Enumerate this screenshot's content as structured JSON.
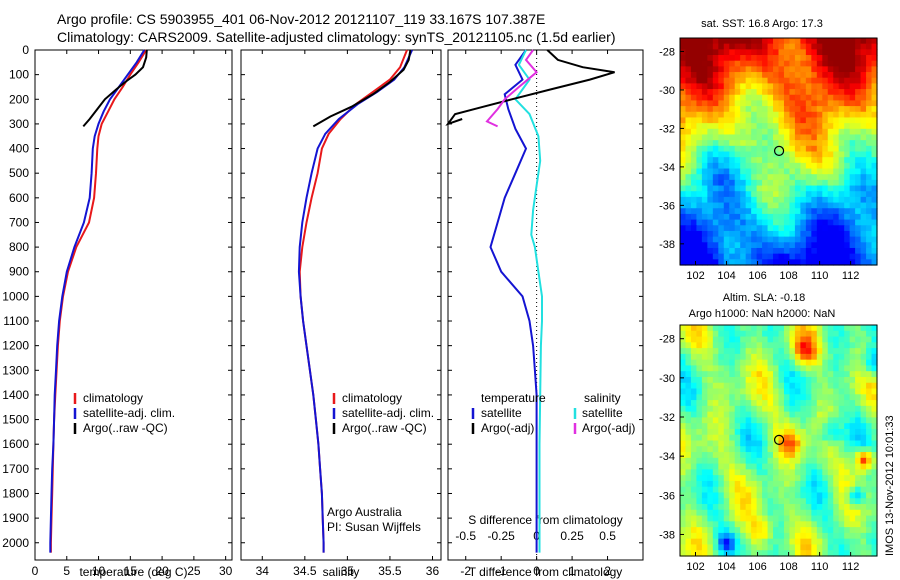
{
  "header": {
    "line1": "Argo profile: CS 5903955_401 06-Nov-2012 20121107_119 33.167S 107.387E",
    "line2": "Climatology: CARS2009. Satellite-adjusted climatology: synTS_20121105.nc (1.5d earlier)"
  },
  "credit": {
    "org": "Argo Australia",
    "pi": "PI: Susan Wijffels",
    "stamp": "IMOS 13-Nov-2012 10:01:33"
  },
  "colors": {
    "climatology": "#e8181a",
    "satellite": "#1414d2",
    "argo": "#000000",
    "salinity_satellite": "#22e0e0",
    "salinity_argo": "#e030e0"
  },
  "chart_data": [
    {
      "type": "line",
      "id": "temperature",
      "xlabel": "temperature (deg C)",
      "xlim": [
        0,
        31
      ],
      "xticks": [
        0,
        5,
        10,
        15,
        20,
        25,
        30
      ],
      "ylim": [
        0,
        2070
      ],
      "yreversed": true,
      "yticks": [
        0,
        100,
        200,
        300,
        400,
        500,
        600,
        700,
        800,
        900,
        1000,
        1100,
        1200,
        1300,
        1400,
        1500,
        1600,
        1700,
        1800,
        1900,
        2000
      ],
      "legend": [
        "climatology",
        "satellite-adj. clim.",
        "Argo(..raw -QC)"
      ],
      "series": [
        {
          "name": "climatology",
          "color": "#e8181a",
          "points": [
            [
              17.5,
              0
            ],
            [
              16.3,
              50
            ],
            [
              15.0,
              100
            ],
            [
              13.8,
              150
            ],
            [
              12.5,
              200
            ],
            [
              11.5,
              250
            ],
            [
              10.5,
              300
            ],
            [
              10.0,
              350
            ],
            [
              9.8,
              400
            ],
            [
              9.6,
              500
            ],
            [
              9.3,
              600
            ],
            [
              8.5,
              700
            ],
            [
              6.5,
              800
            ],
            [
              5.2,
              900
            ],
            [
              4.4,
              1000
            ],
            [
              3.9,
              1100
            ],
            [
              3.6,
              1200
            ],
            [
              3.4,
              1300
            ],
            [
              3.2,
              1400
            ],
            [
              3.0,
              1500
            ],
            [
              2.9,
              1600
            ],
            [
              2.8,
              1700
            ],
            [
              2.7,
              1800
            ],
            [
              2.6,
              1900
            ],
            [
              2.5,
              2000
            ],
            [
              2.5,
              2040
            ]
          ]
        },
        {
          "name": "satellite-adj. clim.",
          "color": "#1414d2",
          "points": [
            [
              17.2,
              0
            ],
            [
              16.0,
              50
            ],
            [
              14.6,
              100
            ],
            [
              13.2,
              150
            ],
            [
              11.8,
              200
            ],
            [
              10.8,
              250
            ],
            [
              10.0,
              300
            ],
            [
              9.4,
              350
            ],
            [
              9.1,
              400
            ],
            [
              8.9,
              500
            ],
            [
              8.6,
              600
            ],
            [
              7.7,
              700
            ],
            [
              6.2,
              800
            ],
            [
              5.0,
              900
            ],
            [
              4.3,
              1000
            ],
            [
              3.8,
              1100
            ],
            [
              3.5,
              1200
            ],
            [
              3.3,
              1300
            ],
            [
              3.1,
              1400
            ],
            [
              3.0,
              1500
            ],
            [
              2.9,
              1600
            ],
            [
              2.7,
              1700
            ],
            [
              2.6,
              1800
            ],
            [
              2.5,
              1900
            ],
            [
              2.4,
              2000
            ],
            [
              2.4,
              2040
            ]
          ]
        },
        {
          "name": "Argo(..raw -QC)",
          "color": "#000000",
          "points": [
            [
              17.6,
              0
            ],
            [
              17.5,
              30
            ],
            [
              17.0,
              70
            ],
            [
              15.8,
              100
            ],
            [
              14.2,
              130
            ],
            [
              12.8,
              160
            ],
            [
              11.0,
              200
            ],
            [
              9.8,
              240
            ],
            [
              8.6,
              280
            ],
            [
              7.6,
              310
            ]
          ]
        }
      ]
    },
    {
      "type": "line",
      "id": "salinity",
      "xlabel": "salinity",
      "xlim": [
        33.75,
        36.1
      ],
      "xticks": [
        34,
        34.5,
        35,
        35.5,
        36
      ],
      "ylim": [
        0,
        2070
      ],
      "yreversed": true,
      "legend": [
        "climatology",
        "satellite-adj. clim.",
        "Argo(..raw -QC)"
      ],
      "series": [
        {
          "name": "climatology",
          "color": "#e8181a",
          "points": [
            [
              35.7,
              0
            ],
            [
              35.62,
              70
            ],
            [
              35.5,
              120
            ],
            [
              35.3,
              170
            ],
            [
              35.1,
              220
            ],
            [
              34.92,
              280
            ],
            [
              34.78,
              340
            ],
            [
              34.7,
              400
            ],
            [
              34.65,
              500
            ],
            [
              34.58,
              600
            ],
            [
              34.52,
              700
            ],
            [
              34.47,
              800
            ],
            [
              34.44,
              900
            ],
            [
              34.45,
              1000
            ],
            [
              34.48,
              1100
            ],
            [
              34.52,
              1200
            ],
            [
              34.56,
              1300
            ],
            [
              34.6,
              1400
            ],
            [
              34.63,
              1500
            ],
            [
              34.66,
              1600
            ],
            [
              34.68,
              1700
            ],
            [
              34.7,
              1800
            ],
            [
              34.71,
              1900
            ],
            [
              34.72,
              2000
            ],
            [
              34.72,
              2040
            ]
          ]
        },
        {
          "name": "satellite-adj. clim.",
          "color": "#1414d2",
          "points": [
            [
              35.76,
              0
            ],
            [
              35.67,
              70
            ],
            [
              35.55,
              120
            ],
            [
              35.35,
              170
            ],
            [
              35.12,
              220
            ],
            [
              34.9,
              280
            ],
            [
              34.74,
              340
            ],
            [
              34.65,
              400
            ],
            [
              34.58,
              500
            ],
            [
              34.52,
              600
            ],
            [
              34.47,
              700
            ],
            [
              34.44,
              800
            ],
            [
              34.43,
              900
            ],
            [
              34.45,
              1000
            ],
            [
              34.48,
              1100
            ],
            [
              34.52,
              1200
            ],
            [
              34.56,
              1300
            ],
            [
              34.6,
              1400
            ],
            [
              34.63,
              1500
            ],
            [
              34.66,
              1600
            ],
            [
              34.68,
              1700
            ],
            [
              34.7,
              1800
            ],
            [
              34.71,
              1900
            ],
            [
              34.72,
              2000
            ],
            [
              34.72,
              2040
            ]
          ]
        },
        {
          "name": "Argo(..raw -QC)",
          "color": "#000000",
          "points": [
            [
              35.74,
              0
            ],
            [
              35.72,
              40
            ],
            [
              35.66,
              80
            ],
            [
              35.5,
              130
            ],
            [
              35.3,
              180
            ],
            [
              35.05,
              230
            ],
            [
              34.8,
              270
            ],
            [
              34.6,
              310
            ]
          ]
        }
      ]
    },
    {
      "type": "line",
      "id": "difference",
      "xlabel": "T difference from climatology",
      "xlabel_top": "S difference from climatology",
      "xlim": [
        -2.5,
        3
      ],
      "xticks": [
        -2,
        -1,
        0,
        1,
        2
      ],
      "sticks_positions": [
        -2,
        -1,
        0,
        1,
        2
      ],
      "sticks_labels": [
        "-0.5",
        "-0.25",
        "0",
        "0.25",
        "0.5"
      ],
      "ylim": [
        0,
        2070
      ],
      "yreversed": true,
      "legend_temperature_title": "temperature",
      "legend_salinity_title": "salinity",
      "legend_temperature": [
        "satellite",
        "Argo(-adj)"
      ],
      "legend_salinity": [
        "satellite",
        "Argo(-adj)"
      ],
      "series": [
        {
          "name": "temperature satellite",
          "color": "#1414d2",
          "points": [
            [
              -0.3,
              0
            ],
            [
              -0.6,
              60
            ],
            [
              -0.4,
              120
            ],
            [
              -0.9,
              180
            ],
            [
              -0.8,
              240
            ],
            [
              -0.6,
              320
            ],
            [
              -0.3,
              400
            ],
            [
              -0.6,
              500
            ],
            [
              -0.9,
              600
            ],
            [
              -1.1,
              700
            ],
            [
              -1.3,
              800
            ],
            [
              -1.0,
              900
            ],
            [
              -0.4,
              1000
            ],
            [
              -0.2,
              1100
            ],
            [
              -0.1,
              1200
            ],
            [
              -0.05,
              1300
            ],
            [
              0.0,
              1400
            ],
            [
              0.0,
              1500
            ],
            [
              0.0,
              1600
            ],
            [
              0.0,
              1700
            ],
            [
              0.0,
              1800
            ],
            [
              0.0,
              1900
            ],
            [
              0.0,
              2000
            ],
            [
              0.0,
              2040
            ]
          ]
        },
        {
          "name": "salinity satellite",
          "color": "#22e0e0",
          "points": [
            [
              -0.3,
              0
            ],
            [
              -0.5,
              60
            ],
            [
              -0.2,
              120
            ],
            [
              -0.6,
              200
            ],
            [
              -0.2,
              260
            ],
            [
              0.05,
              350
            ],
            [
              0.1,
              450
            ],
            [
              0.0,
              550
            ],
            [
              -0.1,
              650
            ],
            [
              -0.15,
              750
            ],
            [
              -0.05,
              800
            ],
            [
              0.05,
              900
            ],
            [
              0.15,
              1000
            ],
            [
              0.15,
              1100
            ],
            [
              0.12,
              1200
            ],
            [
              0.1,
              1400
            ],
            [
              0.08,
              1600
            ],
            [
              0.08,
              1800
            ],
            [
              0.08,
              2000
            ],
            [
              0.08,
              2040
            ]
          ]
        },
        {
          "name": "temperature Argo(-adj)",
          "color": "#000000",
          "points": [
            [
              0.3,
              0
            ],
            [
              0.6,
              40
            ],
            [
              1.3,
              70
            ],
            [
              2.2,
              90
            ],
            [
              1.5,
              120
            ],
            [
              0.4,
              160
            ],
            [
              -0.7,
              200
            ],
            [
              -1.5,
              230
            ],
            [
              -2.3,
              260
            ],
            [
              -2.5,
              300
            ],
            [
              -2.1,
              280
            ]
          ]
        },
        {
          "name": "salinity Argo(-adj)",
          "color": "#e030e0",
          "points": [
            [
              -0.1,
              0
            ],
            [
              -0.3,
              40
            ],
            [
              0.0,
              90
            ],
            [
              -0.5,
              150
            ],
            [
              -0.9,
              200
            ],
            [
              -1.1,
              240
            ],
            [
              -1.4,
              290
            ],
            [
              -1.1,
              310
            ]
          ]
        }
      ]
    }
  ],
  "maps": [
    {
      "id": "sst",
      "title": "sat. SST: 16.8 Argo: 17.3",
      "xticks": [
        102,
        104,
        106,
        108,
        110,
        112
      ],
      "yticks": [
        -28,
        -30,
        -32,
        -34,
        -36,
        -38
      ],
      "xlim": [
        101,
        113.7
      ],
      "ylim": [
        -39.1,
        -27.3
      ],
      "argo_location": [
        107.387,
        -33.167
      ]
    },
    {
      "id": "sla",
      "title": "Altim. SLA: -0.18",
      "subtitle": "Argo h1000: NaN h2000: NaN",
      "xticks": [
        102,
        104,
        106,
        108,
        110,
        112
      ],
      "yticks": [
        -28,
        -30,
        -32,
        -34,
        -36,
        -38
      ],
      "xlim": [
        101,
        113.7
      ],
      "ylim": [
        -39.1,
        -27.3
      ],
      "argo_location": [
        107.387,
        -33.167
      ]
    }
  ]
}
